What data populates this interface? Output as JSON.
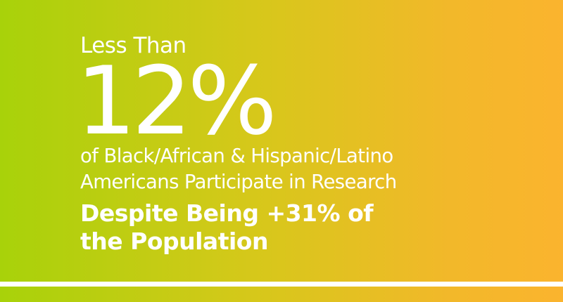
{
  "headline": {
    "lead": "Less Than",
    "stat": "12%",
    "description_lines": [
      "of Black/African & Hispanic/Latino",
      "Americans Participate in Research"
    ],
    "emphasis_lines": [
      "Despite Being +31% of",
      "the Population"
    ]
  },
  "colors": {
    "gradient_start": "#a8d20a",
    "gradient_end": "#fbb42e",
    "text": "#ffffff"
  }
}
